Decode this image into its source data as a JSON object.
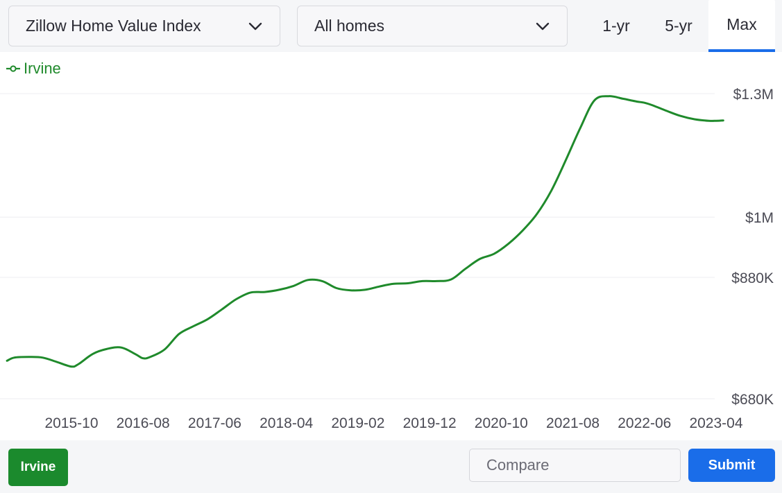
{
  "filters": {
    "metric": "Zillow Home Value Index",
    "home_type": "All homes"
  },
  "ranges": [
    "1-yr",
    "5-yr",
    "Max"
  ],
  "active_range": "Max",
  "legend": {
    "label": "Irvine"
  },
  "bottom": {
    "chip": "Irvine",
    "compare_placeholder": "Compare",
    "submit": "Submit"
  },
  "colors": {
    "series": "#1f8a2b",
    "accent": "#1a6de9",
    "chip": "#1b8a2d"
  },
  "icons": {
    "legend": "line-marker-icon",
    "select": "chevron-down-icon"
  },
  "chart_data": {
    "type": "line",
    "title": "",
    "xlabel": "",
    "ylabel": "",
    "x_ticks": [
      "2015-10",
      "2016-08",
      "2017-06",
      "2018-04",
      "2019-02",
      "2019-12",
      "2020-10",
      "2021-08",
      "2022-06",
      "2023-04"
    ],
    "y_ticks": [
      {
        "value": 680000,
        "label": "$680K"
      },
      {
        "value": 880000,
        "label": "$880K"
      },
      {
        "value": 1000000,
        "label": "$1M"
      },
      {
        "value": 1300000,
        "label": "$1.3M"
      }
    ],
    "scale": "log",
    "ylim": [
      680000,
      1300000
    ],
    "xlim": [
      "2015-01",
      "2023-06"
    ],
    "grid": true,
    "legend_position": "top-left",
    "series": [
      {
        "name": "Irvine",
        "x": [
          "2015-01",
          "2015-02",
          "2015-04",
          "2015-06",
          "2015-08",
          "2015-10",
          "2015-11",
          "2016-01",
          "2016-03",
          "2016-05",
          "2016-07",
          "2016-08",
          "2016-09",
          "2016-11",
          "2017-01",
          "2017-03",
          "2017-05",
          "2017-07",
          "2017-09",
          "2017-11",
          "2018-01",
          "2018-03",
          "2018-05",
          "2018-07",
          "2018-09",
          "2018-11",
          "2019-01",
          "2019-03",
          "2019-05",
          "2019-07",
          "2019-09",
          "2019-11",
          "2020-01",
          "2020-03",
          "2020-05",
          "2020-07",
          "2020-09",
          "2020-11",
          "2021-01",
          "2021-03",
          "2021-05",
          "2021-07",
          "2021-09",
          "2021-11",
          "2022-01",
          "2022-03",
          "2022-04",
          "2022-05",
          "2022-06",
          "2022-07",
          "2022-09",
          "2022-11",
          "2023-01",
          "2023-03",
          "2023-04",
          "2023-05"
        ],
        "values": [
          737000,
          742000,
          743000,
          742000,
          735000,
          728000,
          732000,
          748000,
          756000,
          758000,
          747000,
          741000,
          743000,
          755000,
          780000,
          793000,
          805000,
          822000,
          840000,
          852000,
          853000,
          857000,
          864000,
          875000,
          873000,
          860000,
          856000,
          857000,
          863000,
          868000,
          869000,
          873000,
          873000,
          876000,
          896000,
          915000,
          925000,
          945000,
          972000,
          1007000,
          1058000,
          1128000,
          1207000,
          1281000,
          1293000,
          1286000,
          1282000,
          1278000,
          1275000,
          1269000,
          1254000,
          1240000,
          1231000,
          1227000,
          1227000,
          1228000
        ]
      }
    ]
  }
}
